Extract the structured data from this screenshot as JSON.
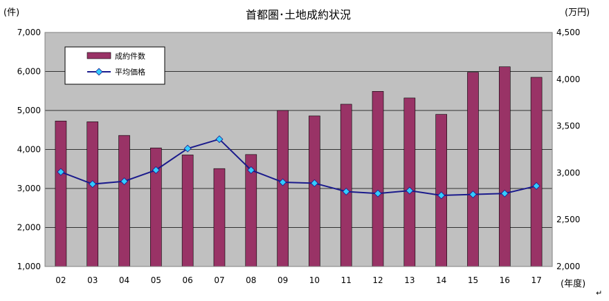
{
  "chart_data": {
    "type": "bar",
    "title": "首都圏･土地成約状況",
    "left_unit": "(件)",
    "right_unit": "(万円)",
    "x_unit": "(年度)",
    "categories": [
      "02",
      "03",
      "04",
      "05",
      "06",
      "07",
      "08",
      "09",
      "10",
      "11",
      "12",
      "13",
      "14",
      "15",
      "16",
      "17"
    ],
    "y_left": {
      "min": 1000,
      "max": 7000,
      "ticks": [
        1000,
        2000,
        3000,
        4000,
        5000,
        6000,
        7000
      ],
      "tick_labels": [
        "1,000",
        "2,000",
        "3,000",
        "4,000",
        "5,000",
        "6,000",
        "7,000"
      ]
    },
    "y_right": {
      "min": 2000,
      "max": 4500,
      "ticks": [
        2000,
        2500,
        3000,
        3500,
        4000,
        4500
      ],
      "tick_labels": [
        "2,000",
        "2,500",
        "3,000",
        "3,500",
        "4,000",
        "4,500"
      ]
    },
    "series": [
      {
        "name": "成約件数",
        "kind": "bar",
        "axis": "left",
        "color": "#993366",
        "values": [
          4730,
          4710,
          4360,
          4040,
          3860,
          3510,
          3870,
          5000,
          4860,
          5160,
          5490,
          5320,
          4900,
          5980,
          6120,
          5850
        ]
      },
      {
        "name": "平均価格",
        "kind": "line",
        "axis": "right",
        "color": "#1a1a8c",
        "marker_color": "#33ccff",
        "values": [
          3010,
          2880,
          2910,
          3030,
          3260,
          3360,
          3030,
          2900,
          2890,
          2800,
          2780,
          2810,
          2760,
          2770,
          2780,
          2860
        ]
      }
    ],
    "legend_position": "top-left",
    "grid": true,
    "plot_background": "#c0c0c0"
  }
}
